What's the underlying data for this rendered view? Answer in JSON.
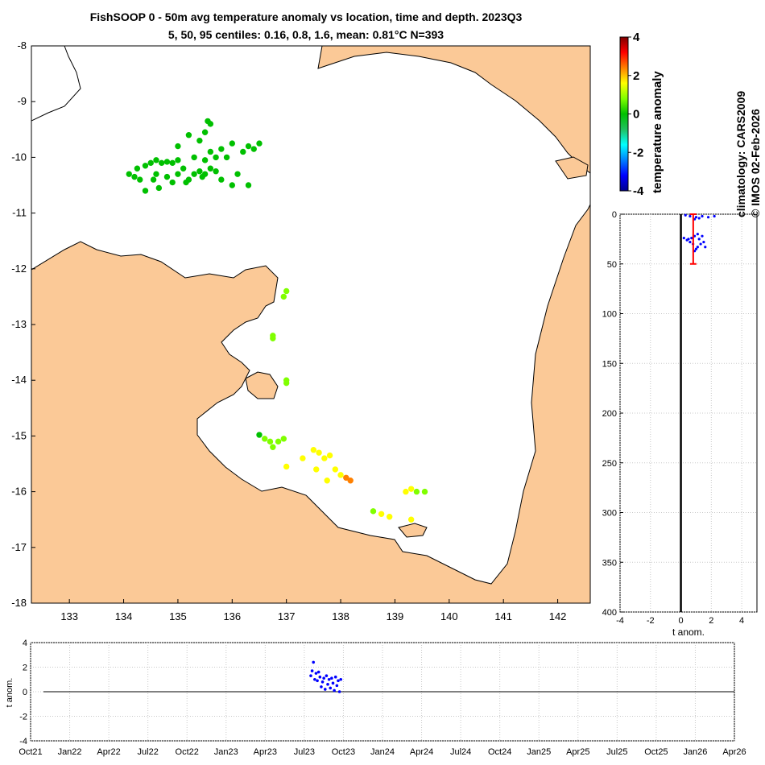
{
  "header": {
    "title_line1": "FishSOOP 0 - 50m avg temperature anomaly vs location, time and depth. 2023Q3",
    "title_line2": "5, 50, 95 centiles: 0.16, 0.8, 1.6, mean: 0.81°C N=393"
  },
  "colorbar": {
    "label": "temperature anomaly",
    "ticks": [
      "4",
      "2",
      "0",
      "-2",
      "-4"
    ],
    "colors": [
      "#00008f",
      "#0000ff",
      "#0080ff",
      "#00ffff",
      "#20c060",
      "#00c000",
      "#80ff00",
      "#ffff00",
      "#ff8000",
      "#ff0000",
      "#800000"
    ]
  },
  "credits": {
    "line1": "climatology: CARS2009",
    "line2": "© IMOS 02-Feb-2026"
  },
  "colors": {
    "land": "#fbc997",
    "sea": "#ffffff",
    "profile_points": "#0000ff",
    "error_bar": "#ff0000"
  },
  "chart_data": [
    {
      "type": "scatter",
      "name": "map",
      "xlabel": "",
      "ylabel": "",
      "xlim": [
        132.3,
        142.6
      ],
      "ylim": [
        -18,
        -8
      ],
      "xticks": [
        "133",
        "134",
        "135",
        "136",
        "137",
        "138",
        "139",
        "140",
        "141",
        "142"
      ],
      "yticks": [
        "-8",
        "-9",
        "-10",
        "-11",
        "-12",
        "-13",
        "-14",
        "-15",
        "-16",
        "-17",
        "-18"
      ],
      "points": [
        {
          "lon": 134.1,
          "lat": -10.3,
          "anom": 0.1
        },
        {
          "lon": 134.2,
          "lat": -10.35,
          "anom": 0.2
        },
        {
          "lon": 134.3,
          "lat": -10.4,
          "anom": 0.0
        },
        {
          "lon": 134.25,
          "lat": -10.2,
          "anom": 0.1
        },
        {
          "lon": 134.4,
          "lat": -10.15,
          "anom": 0.2
        },
        {
          "lon": 134.5,
          "lat": -10.1,
          "anom": 0.1
        },
        {
          "lon": 134.6,
          "lat": -10.05,
          "anom": 0.0
        },
        {
          "lon": 134.7,
          "lat": -10.1,
          "anom": 0.2
        },
        {
          "lon": 134.8,
          "lat": -10.08,
          "anom": 0.1
        },
        {
          "lon": 134.9,
          "lat": -10.1,
          "anom": 0.1
        },
        {
          "lon": 135.0,
          "lat": -10.05,
          "anom": 0.2
        },
        {
          "lon": 134.55,
          "lat": -10.4,
          "anom": 0.1
        },
        {
          "lon": 134.65,
          "lat": -10.55,
          "anom": 0.0
        },
        {
          "lon": 134.8,
          "lat": -10.35,
          "anom": 0.2
        },
        {
          "lon": 134.9,
          "lat": -10.45,
          "anom": 0.1
        },
        {
          "lon": 135.0,
          "lat": -10.3,
          "anom": 0.1
        },
        {
          "lon": 135.1,
          "lat": -10.2,
          "anom": 0.2
        },
        {
          "lon": 135.2,
          "lat": -10.4,
          "anom": 0.1
        },
        {
          "lon": 135.3,
          "lat": -10.3,
          "anom": 0.3
        },
        {
          "lon": 135.4,
          "lat": -10.25,
          "anom": 0.2
        },
        {
          "lon": 135.5,
          "lat": -10.3,
          "anom": 0.1
        },
        {
          "lon": 135.6,
          "lat": -10.2,
          "anom": 0.2
        },
        {
          "lon": 135.7,
          "lat": -10.25,
          "anom": 0.1
        },
        {
          "lon": 135.5,
          "lat": -10.05,
          "anom": 0.2
        },
        {
          "lon": 135.6,
          "lat": -9.9,
          "anom": 0.1
        },
        {
          "lon": 135.7,
          "lat": -10.0,
          "anom": 0.2
        },
        {
          "lon": 135.8,
          "lat": -9.85,
          "anom": 0.1
        },
        {
          "lon": 135.9,
          "lat": -10.0,
          "anom": 0.0
        },
        {
          "lon": 135.4,
          "lat": -9.7,
          "anom": 0.1
        },
        {
          "lon": 135.5,
          "lat": -9.55,
          "anom": 0.2
        },
        {
          "lon": 135.55,
          "lat": -9.35,
          "anom": 0.1
        },
        {
          "lon": 135.6,
          "lat": -9.4,
          "anom": 0.2
        },
        {
          "lon": 135.2,
          "lat": -9.6,
          "anom": 0.1
        },
        {
          "lon": 135.0,
          "lat": -9.8,
          "anom": 0.2
        },
        {
          "lon": 135.3,
          "lat": -10.0,
          "anom": 0.1
        },
        {
          "lon": 135.8,
          "lat": -10.4,
          "anom": 0.2
        },
        {
          "lon": 136.0,
          "lat": -9.75,
          "anom": 0.1
        },
        {
          "lon": 136.2,
          "lat": -9.9,
          "anom": 0.2
        },
        {
          "lon": 136.3,
          "lat": -9.8,
          "anom": 0.0
        },
        {
          "lon": 136.4,
          "lat": -9.85,
          "anom": 0.1
        },
        {
          "lon": 136.5,
          "lat": -9.75,
          "anom": 0.2
        },
        {
          "lon": 136.1,
          "lat": -10.3,
          "anom": 0.1
        },
        {
          "lon": 136.0,
          "lat": -10.5,
          "anom": 0.2
        },
        {
          "lon": 136.3,
          "lat": -10.5,
          "anom": 0.1
        },
        {
          "lon": 134.4,
          "lat": -10.6,
          "anom": 0.0
        },
        {
          "lon": 134.6,
          "lat": -10.3,
          "anom": 0.1
        },
        {
          "lon": 135.15,
          "lat": -10.45,
          "anom": 0.2
        },
        {
          "lon": 135.45,
          "lat": -10.35,
          "anom": 0.1
        },
        {
          "lon": 137.0,
          "lat": -12.4,
          "anom": 0.8
        },
        {
          "lon": 136.95,
          "lat": -12.5,
          "anom": 0.6
        },
        {
          "lon": 136.75,
          "lat": -13.2,
          "anom": 0.9
        },
        {
          "lon": 136.75,
          "lat": -13.25,
          "anom": 1.0
        },
        {
          "lon": 137.0,
          "lat": -14.0,
          "anom": 0.5
        },
        {
          "lon": 137.0,
          "lat": -14.05,
          "anom": 0.4
        },
        {
          "lon": 136.5,
          "lat": -14.98,
          "anom": 0.3
        },
        {
          "lon": 136.6,
          "lat": -15.05,
          "anom": 0.4
        },
        {
          "lon": 136.7,
          "lat": -15.1,
          "anom": 0.9
        },
        {
          "lon": 136.75,
          "lat": -15.2,
          "anom": 1.0
        },
        {
          "lon": 136.85,
          "lat": -15.1,
          "anom": 0.6
        },
        {
          "lon": 136.95,
          "lat": -15.05,
          "anom": 0.4
        },
        {
          "lon": 137.0,
          "lat": -15.55,
          "anom": 1.2
        },
        {
          "lon": 137.3,
          "lat": -15.4,
          "anom": 1.3
        },
        {
          "lon": 137.5,
          "lat": -15.25,
          "anom": 1.5
        },
        {
          "lon": 137.6,
          "lat": -15.3,
          "anom": 1.4
        },
        {
          "lon": 137.7,
          "lat": -15.4,
          "anom": 1.6
        },
        {
          "lon": 137.8,
          "lat": -15.35,
          "anom": 1.5
        },
        {
          "lon": 137.9,
          "lat": -15.6,
          "anom": 1.6
        },
        {
          "lon": 138.0,
          "lat": -15.7,
          "anom": 1.9
        },
        {
          "lon": 138.1,
          "lat": -15.75,
          "anom": 2.2
        },
        {
          "lon": 138.18,
          "lat": -15.8,
          "anom": 2.6
        },
        {
          "lon": 137.75,
          "lat": -15.8,
          "anom": 1.7
        },
        {
          "lon": 137.55,
          "lat": -15.6,
          "anom": 1.4
        },
        {
          "lon": 138.6,
          "lat": -16.35,
          "anom": 0.6
        },
        {
          "lon": 138.75,
          "lat": -16.4,
          "anom": 1.5
        },
        {
          "lon": 138.9,
          "lat": -16.45,
          "anom": 1.8
        },
        {
          "lon": 139.2,
          "lat": -16.0,
          "anom": 1.6
        },
        {
          "lon": 139.3,
          "lat": -15.95,
          "anom": 1.3
        },
        {
          "lon": 139.4,
          "lat": -16.0,
          "anom": 0.6
        },
        {
          "lon": 139.55,
          "lat": -16.0,
          "anom": 0.4
        },
        {
          "lon": 139.3,
          "lat": -16.5,
          "anom": 1.2
        }
      ]
    },
    {
      "type": "scatter",
      "name": "depth_profile",
      "xlabel": "t anom.",
      "ylabel": "",
      "xlim": [
        -4,
        5
      ],
      "ylim": [
        400,
        0
      ],
      "xticks": [
        "-4",
        "-2",
        "0",
        "2",
        "4"
      ],
      "yticks": [
        "0",
        "50",
        "100",
        "150",
        "200",
        "250",
        "300",
        "350",
        "400"
      ],
      "mean": 0.81,
      "error_bar": {
        "x": 0.81,
        "y_from": 0,
        "y_to": 50
      },
      "points": [
        {
          "anom": 0.3,
          "depth": 1
        },
        {
          "anom": 0.6,
          "depth": 2
        },
        {
          "anom": 1.0,
          "depth": 3
        },
        {
          "anom": 1.4,
          "depth": 2
        },
        {
          "anom": 1.8,
          "depth": 3
        },
        {
          "anom": 2.2,
          "depth": 2
        },
        {
          "anom": 0.9,
          "depth": 5
        },
        {
          "anom": 1.2,
          "depth": 4
        },
        {
          "anom": 0.2,
          "depth": 24
        },
        {
          "anom": 0.4,
          "depth": 26
        },
        {
          "anom": 0.5,
          "depth": 25
        },
        {
          "anom": 0.7,
          "depth": 24
        },
        {
          "anom": 0.9,
          "depth": 22
        },
        {
          "anom": 1.1,
          "depth": 20
        },
        {
          "anom": 1.2,
          "depth": 25
        },
        {
          "anom": 1.3,
          "depth": 30
        },
        {
          "anom": 0.8,
          "depth": 30
        },
        {
          "anom": 1.0,
          "depth": 35
        },
        {
          "anom": 1.5,
          "depth": 28
        },
        {
          "anom": 1.6,
          "depth": 33
        },
        {
          "anom": 0.6,
          "depth": 28
        },
        {
          "anom": 1.4,
          "depth": 22
        },
        {
          "anom": 0.9,
          "depth": 37
        },
        {
          "anom": 1.1,
          "depth": 33
        }
      ]
    },
    {
      "type": "scatter",
      "name": "time_series",
      "xlabel": "",
      "ylabel": "t anom.",
      "ylim": [
        -4,
        4
      ],
      "yticks": [
        "4",
        "2",
        "0",
        "-2",
        "-4"
      ],
      "xticks": [
        "Oct21",
        "Jan22",
        "Apr22",
        "Jul22",
        "Oct22",
        "Jan23",
        "Apr23",
        "Jul23",
        "Oct23",
        "Jan24",
        "Apr24",
        "Jul24",
        "Oct24",
        "Jan25",
        "Apr25",
        "Jul25",
        "Oct25",
        "Jan26",
        "Apr26"
      ],
      "points": [
        {
          "month": 21.5,
          "anom": 1.3
        },
        {
          "month": 21.6,
          "anom": 1.7
        },
        {
          "month": 21.7,
          "anom": 2.4
        },
        {
          "month": 21.8,
          "anom": 1.0
        },
        {
          "month": 21.9,
          "anom": 1.5
        },
        {
          "month": 22.0,
          "anom": 0.9
        },
        {
          "month": 22.1,
          "anom": 1.6
        },
        {
          "month": 22.2,
          "anom": 1.2
        },
        {
          "month": 22.3,
          "anom": 0.4
        },
        {
          "month": 22.4,
          "anom": 0.8
        },
        {
          "month": 22.5,
          "anom": 1.1
        },
        {
          "month": 22.6,
          "anom": 0.2
        },
        {
          "month": 22.7,
          "anom": 1.3
        },
        {
          "month": 22.8,
          "anom": 0.6
        },
        {
          "month": 22.9,
          "anom": 1.0
        },
        {
          "month": 23.0,
          "anom": 0.3
        },
        {
          "month": 23.1,
          "anom": 1.1
        },
        {
          "month": 23.2,
          "anom": 0.7
        },
        {
          "month": 23.3,
          "anom": 0.1
        },
        {
          "month": 23.4,
          "anom": 1.2
        },
        {
          "month": 23.5,
          "anom": 0.5
        },
        {
          "month": 23.6,
          "anom": 0.9
        },
        {
          "month": 23.7,
          "anom": 0.0
        },
        {
          "month": 23.8,
          "anom": 1.0
        }
      ]
    }
  ]
}
